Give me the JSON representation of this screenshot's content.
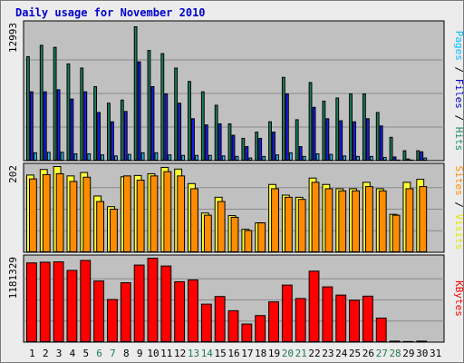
{
  "chart_data": {
    "type": "bar",
    "title": "Daily usage for November 2010",
    "title_color": "#0000cc",
    "background": "#ececec",
    "plot_background": "#c0c0c0",
    "grid": true,
    "categories": [
      "1",
      "2",
      "3",
      "4",
      "5",
      "6",
      "7",
      "8",
      "9",
      "10",
      "11",
      "12",
      "13",
      "14",
      "15",
      "16",
      "17",
      "18",
      "19",
      "20",
      "21",
      "22",
      "23",
      "24",
      "25",
      "26",
      "27",
      "28",
      "29",
      "30",
      "31"
    ],
    "weekend_days": [
      "6",
      "7",
      "13",
      "14",
      "20",
      "21",
      "27",
      "28"
    ],
    "weekend_color": "#1f7a4d",
    "weekday_color": "#000000",
    "panels": [
      {
        "id": "pages-files-hits",
        "ymax_label": "12993",
        "ymax": 12993,
        "axis_label_parts": [
          {
            "text": "Pages",
            "color": "#00bfff"
          },
          {
            "text": " / ",
            "color": "#000000"
          },
          {
            "text": "Files",
            "color": "#0000cc"
          },
          {
            "text": " / ",
            "color": "#000000"
          },
          {
            "text": "Hits",
            "color": "#1f8a6a"
          }
        ],
        "series": [
          {
            "name": "Hits",
            "color": "#1b7f5e",
            "values": [
              10100,
              11200,
              11000,
              9400,
              9000,
              7200,
              5600,
              5900,
              12993,
              10700,
              10400,
              9000,
              7700,
              6700,
              5400,
              3600,
              2200,
              2800,
              3800,
              8100,
              4000,
              7600,
              5800,
              6100,
              6500,
              6500,
              4700,
              2300,
              1000,
              1000,
              null
            ]
          },
          {
            "name": "Files",
            "color": "#1a1aff",
            "values": [
              6700,
              6700,
              6900,
              6000,
              6700,
              4700,
              3800,
              4800,
              9600,
              7200,
              6500,
              5600,
              4100,
              3500,
              3600,
              2500,
              1400,
              2200,
              2800,
              6500,
              1400,
              5200,
              4100,
              3900,
              3800,
              4100,
              3400,
              400,
              200,
              900,
              null
            ]
          },
          {
            "name": "Pages",
            "color": "#2bb6f0",
            "values": [
              800,
              850,
              850,
              700,
              700,
              600,
              500,
              650,
              800,
              800,
              600,
              550,
              550,
              550,
              500,
              450,
              300,
              450,
              600,
              800,
              450,
              700,
              650,
              500,
              450,
              450,
              350,
              100,
              100,
              300,
              null
            ]
          }
        ]
      },
      {
        "id": "visits-sites",
        "ymax_label": "202",
        "ymax": 202,
        "axis_label_parts": [
          {
            "text": "Sites",
            "color": "#ff8c00"
          },
          {
            "text": " / ",
            "color": "#000000"
          },
          {
            "text": "Visits",
            "color": "#e6e600"
          }
        ],
        "series": [
          {
            "name": "Visits",
            "color": "#ffff33",
            "values": [
              182,
              195,
              202,
              180,
              188,
              133,
              108,
              178,
              181,
              185,
              200,
              196,
              162,
              93,
              130,
              87,
              55,
              70,
              160,
              135,
              130,
              175,
              160,
              150,
              150,
              165,
              150,
              90,
              165,
              172,
              null
            ]
          },
          {
            "name": "Sites",
            "color": "#ff8c00",
            "values": [
              173,
              183,
              185,
              167,
              177,
              120,
              102,
              180,
              170,
              180,
              190,
              180,
              150,
              88,
              120,
              83,
              52,
              70,
              150,
              130,
              125,
              165,
              150,
              145,
              145,
              155,
              145,
              88,
              150,
              155,
              null
            ]
          }
        ]
      },
      {
        "id": "kbytes",
        "ymax_label": "1181329",
        "ymax": 1181329,
        "axis_label_parts": [
          {
            "text": "KBytes",
            "color": "#ff0000"
          }
        ],
        "series": [
          {
            "name": "KBytes",
            "color": "#ff0000",
            "values": [
              1115000,
              1125000,
              1130000,
              1010000,
              1150000,
              862000,
              603000,
              838000,
              1085000,
              1181329,
              1072000,
              852000,
              877000,
              538000,
              645000,
              446000,
              260000,
              378000,
              570000,
              805000,
              617000,
              1000000,
              780000,
              665000,
              593000,
              650000,
              343000,
              20000,
              15000,
              20000,
              null
            ]
          }
        ]
      }
    ]
  }
}
